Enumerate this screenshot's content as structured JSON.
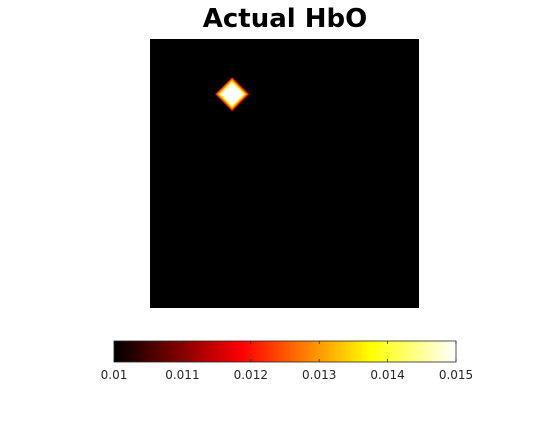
{
  "chart_data": {
    "type": "heatmap",
    "title": "Actual HbO",
    "colormap": "hot",
    "background_value": 0.01,
    "clim": [
      0.01,
      0.015
    ],
    "grid_size": [
      100,
      100
    ],
    "hotspot": {
      "center_col": 30,
      "center_row": 20,
      "radius_cells": 6,
      "peak_value": 0.015
    },
    "colorbar": {
      "orientation": "horizontal",
      "ticks": [
        0.01,
        0.011,
        0.012,
        0.013,
        0.014,
        0.015
      ],
      "tick_labels": [
        "0.01",
        "0.011",
        "0.012",
        "0.013",
        "0.014",
        "0.015"
      ]
    }
  }
}
